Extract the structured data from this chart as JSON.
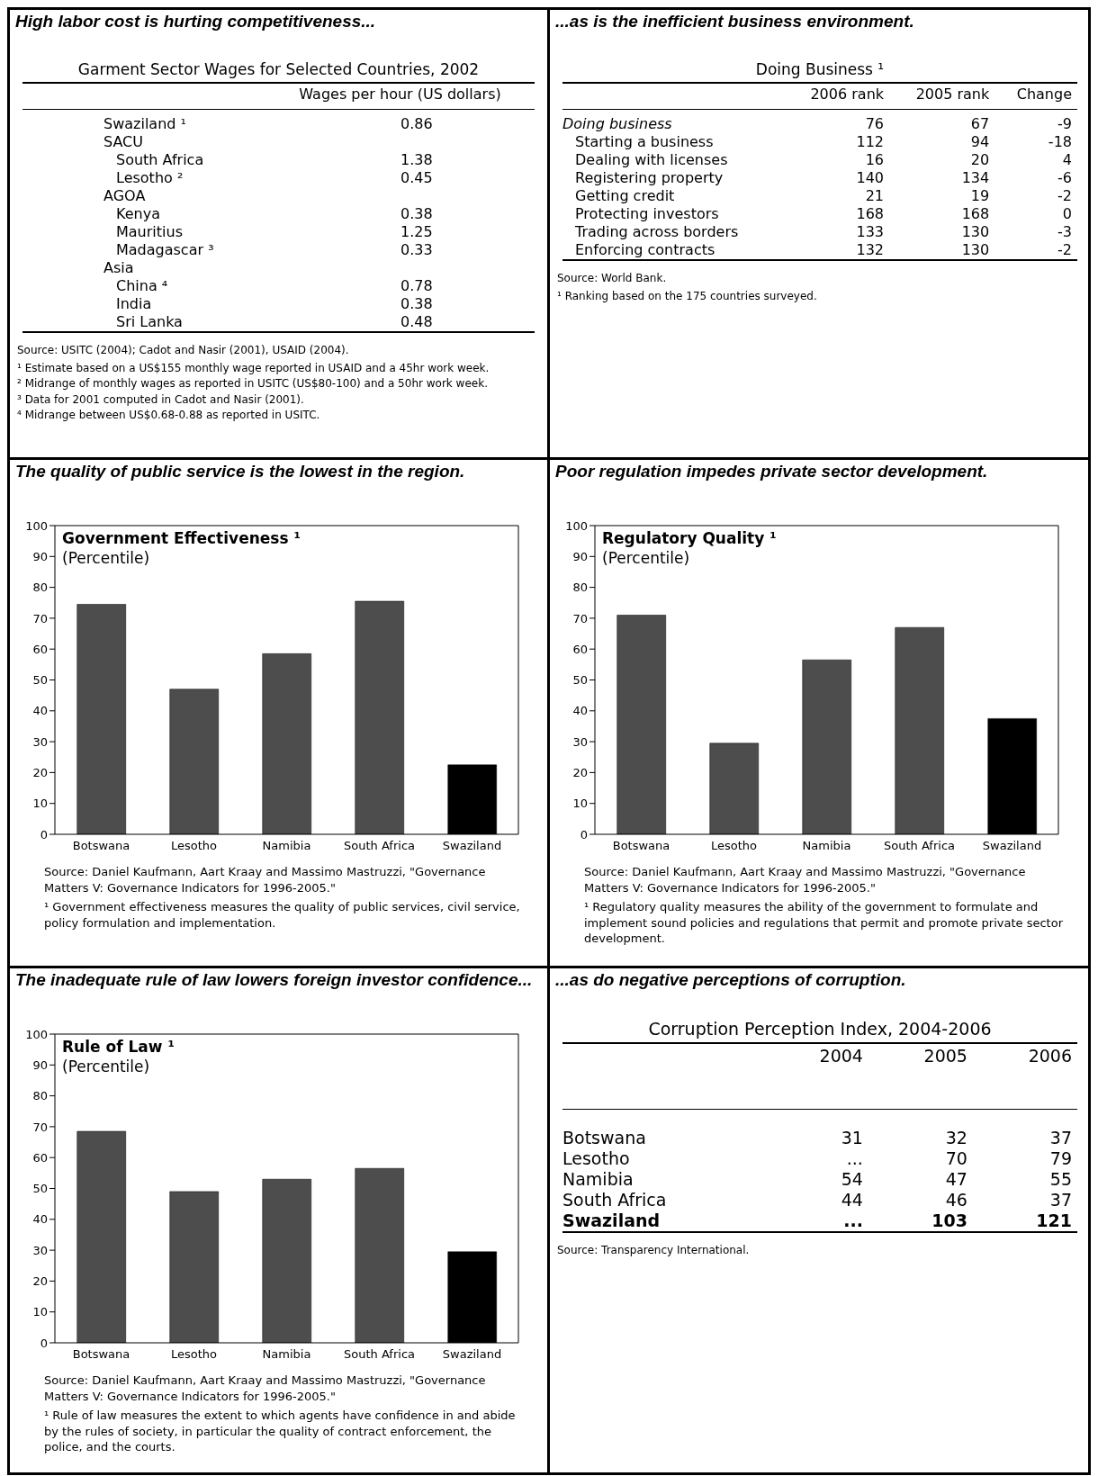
{
  "chart_data": [
    {
      "type": "other",
      "title": "High labor cost is hurting competitiveness...",
      "subtitle": "Garment Sector Wages for Selected Countries, 2002",
      "categories": [
        "Swaziland ¹",
        "SACU",
        "South Africa",
        "Lesotho ²",
        "AGOA",
        "Kenya",
        "Mauritius",
        "Madagascar ³",
        "Asia",
        "China ⁴",
        "India",
        "Sri Lanka"
      ],
      "series": [
        {
          "name": "Wages per hour (US dollars)",
          "values": [
            0.86,
            null,
            1.38,
            0.45,
            null,
            0.38,
            1.25,
            0.33,
            null,
            0.78,
            0.38,
            0.48
          ]
        }
      ],
      "data_labels": true,
      "annotations": [
        "Source: USITC (2004); Cadot and Nasir (2001), USAID (2004).",
        "¹ Estimate based on a US$155 monthly wage reported in USAID and a 45hr work week.",
        "² Midrange of monthly wages as reported in USITC (US$80-100) and a 50hr work week.",
        "³ Data for 2001 computed in Cadot and Nasir (2001).",
        "⁴ Midrange between US$0.68-0.88 as reported in USITC."
      ]
    },
    {
      "type": "other",
      "title": "...as is the inefficient business environment.",
      "subtitle": "Doing Business ¹",
      "categories": [
        "Doing business",
        "Starting a business",
        "Dealing with licenses",
        "Registering property",
        "Getting credit",
        "Protecting investors",
        "Trading across borders",
        "Enforcing contracts"
      ],
      "series": [
        {
          "name": "2006 rank",
          "values": [
            76,
            112,
            16,
            140,
            21,
            168,
            133,
            132
          ]
        },
        {
          "name": "2005 rank",
          "values": [
            67,
            94,
            20,
            134,
            19,
            168,
            130,
            130
          ]
        },
        {
          "name": "Change",
          "values": [
            -9,
            -18,
            4,
            -6,
            -2,
            0,
            -3,
            -2
          ]
        }
      ],
      "data_labels": true,
      "annotations": [
        "Source: World Bank.",
        "¹ Ranking based on the 175 countries surveyed."
      ]
    },
    {
      "type": "bar",
      "title": "The quality of public service is the lowest in the region.",
      "subtitle": "Government Effectiveness ¹",
      "ylabel": "(Percentile)",
      "categories": [
        "Botswana",
        "Lesotho",
        "Namibia",
        "South Africa",
        "Swaziland"
      ],
      "values": [
        74.5,
        47,
        58.5,
        75.5,
        22.5
      ],
      "colors": [
        "#4d4d4d",
        "#4d4d4d",
        "#4d4d4d",
        "#4d4d4d",
        "#000000"
      ],
      "ylim": [
        0,
        100
      ],
      "yticks": [
        0,
        10,
        20,
        30,
        40,
        50,
        60,
        70,
        80,
        90,
        100
      ],
      "annotations": [
        "Source:  Daniel Kaufmann, Aart Kraay and Massimo Mastruzzi, \"Governance Matters V: Governance Indicators for 1996-2005.\"",
        "¹ Government effectiveness measures the quality of public services, civil service, policy formulation and implementation."
      ]
    },
    {
      "type": "bar",
      "title": "Poor regulation impedes private sector development.",
      "subtitle": "Regulatory Quality ¹",
      "ylabel": "(Percentile)",
      "categories": [
        "Botswana",
        "Lesotho",
        "Namibia",
        "South Africa",
        "Swaziland"
      ],
      "values": [
        71,
        29.5,
        56.5,
        67,
        37.5
      ],
      "colors": [
        "#4d4d4d",
        "#4d4d4d",
        "#4d4d4d",
        "#4d4d4d",
        "#000000"
      ],
      "ylim": [
        0,
        100
      ],
      "yticks": [
        0,
        10,
        20,
        30,
        40,
        50,
        60,
        70,
        80,
        90,
        100
      ],
      "annotations": [
        "Source:  Daniel Kaufmann, Aart Kraay and Massimo Mastruzzi, \"Governance Matters V: Governance Indicators for 1996-2005.\"",
        "¹ Regulatory quality measures the ability of the government to formulate and implement sound policies and regulations that permit and promote private sector development."
      ]
    },
    {
      "type": "bar",
      "title": "The inadequate rule of law lowers foreign investor confidence...",
      "subtitle": "Rule of Law ¹",
      "ylabel": "(Percentile)",
      "categories": [
        "Botswana",
        "Lesotho",
        "Namibia",
        "South Africa",
        "Swaziland"
      ],
      "values": [
        68.5,
        49,
        53,
        56.5,
        29.5
      ],
      "colors": [
        "#4d4d4d",
        "#4d4d4d",
        "#4d4d4d",
        "#4d4d4d",
        "#000000"
      ],
      "ylim": [
        0,
        100
      ],
      "yticks": [
        0,
        10,
        20,
        30,
        40,
        50,
        60,
        70,
        80,
        90,
        100
      ],
      "annotations": [
        "Source:  Daniel Kaufmann, Aart Kraay and Massimo Mastruzzi, \"Governance Matters V: Governance Indicators for 1996-2005.\"",
        "¹ Rule of law measures the extent to which agents have confidence in and abide by the rules of society, in particular the quality of contract enforcement, the police, and the courts."
      ]
    },
    {
      "type": "other",
      "title": "...as do negative perceptions of corruption.",
      "subtitle": "Corruption Perception Index, 2004-2006",
      "categories": [
        "Botswana",
        "Lesotho",
        "Namibia",
        "South Africa",
        "Swaziland"
      ],
      "series": [
        {
          "name": "2004",
          "values": [
            31,
            null,
            54,
            44,
            null
          ],
          "value_labels": [
            "31",
            "...",
            "54",
            "44",
            "..."
          ]
        },
        {
          "name": "2005",
          "values": [
            32,
            70,
            47,
            46,
            103
          ]
        },
        {
          "name": "2006",
          "values": [
            37,
            79,
            55,
            37,
            121
          ]
        }
      ],
      "data_labels": true,
      "annotations": [
        "Source: Transparency International."
      ]
    }
  ]
}
